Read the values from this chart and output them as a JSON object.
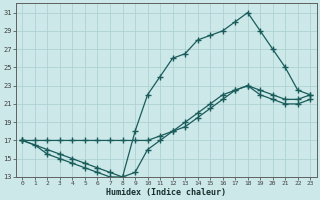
{
  "xlabel": "Humidex (Indice chaleur)",
  "bg_color": "#cce8e8",
  "grid_color": "#aacece",
  "line_color": "#1a5c5c",
  "xlim": [
    -0.5,
    23.5
  ],
  "ylim": [
    13,
    32
  ],
  "xticks": [
    0,
    1,
    2,
    3,
    4,
    5,
    6,
    7,
    8,
    9,
    10,
    11,
    12,
    13,
    14,
    15,
    16,
    17,
    18,
    19,
    20,
    21,
    22,
    23
  ],
  "yticks": [
    13,
    15,
    17,
    19,
    21,
    23,
    25,
    27,
    29,
    31
  ],
  "line1_x": [
    0,
    1,
    2,
    3,
    4,
    5,
    6,
    7,
    8,
    9,
    10,
    11,
    12,
    13,
    14,
    15,
    16,
    17,
    18,
    19,
    20,
    21,
    22,
    23
  ],
  "line1_y": [
    17,
    16.5,
    15.5,
    15,
    14.5,
    14,
    13.5,
    13,
    13,
    13.5,
    16,
    17,
    18,
    19,
    20,
    21,
    22,
    22.5,
    23,
    22,
    21.5,
    21,
    21,
    21.5
  ],
  "line2_x": [
    0,
    2,
    3,
    4,
    5,
    6,
    7,
    8,
    9,
    10,
    11,
    12,
    13,
    14,
    15,
    16,
    17,
    18,
    19,
    20,
    21,
    22,
    23
  ],
  "line2_y": [
    17,
    16,
    15.5,
    15,
    14.5,
    14,
    13.5,
    13,
    18,
    22,
    24,
    26,
    26.5,
    28,
    28.5,
    29,
    30,
    31,
    29,
    27,
    25,
    22.5,
    22
  ],
  "line3_x": [
    0,
    1,
    2,
    3,
    4,
    5,
    6,
    7,
    8,
    9,
    10,
    11,
    12,
    13,
    14,
    15,
    16,
    17,
    18,
    19,
    20,
    21,
    22,
    23
  ],
  "line3_y": [
    17,
    17,
    17,
    17,
    17,
    17,
    17,
    17,
    17,
    17,
    17,
    17.5,
    18,
    18.5,
    19.5,
    20.5,
    21.5,
    22.5,
    23,
    22.5,
    22,
    21.5,
    21.5,
    22
  ]
}
